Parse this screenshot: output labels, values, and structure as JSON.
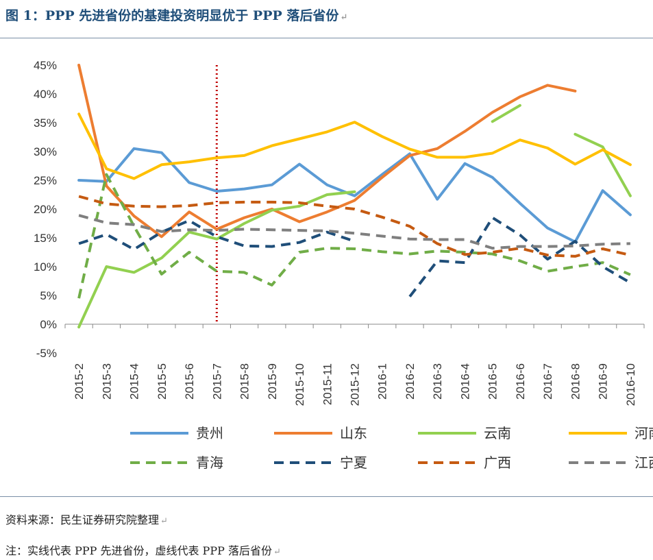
{
  "title": "图 1：PPP 先进省份的基建投资明显优于 PPP 落后省份",
  "return_mark": "↵",
  "source": "资料来源：民生证券研究院整理",
  "note": "注：实线代表 PPP 先进省份，虚线代表 PPP 落后省份",
  "colors": {
    "title": "#1f4e79",
    "guizhou": "#5b9bd5",
    "shandong": "#ed7d31",
    "yunnan": "#92d050",
    "henan": "#ffc000",
    "qinghai": "#70ad47",
    "ningxia": "#1f4e79",
    "guangxi": "#c55a11",
    "jiangxi": "#7f7f7f",
    "marker_line": "#c00000"
  },
  "chart_data": {
    "type": "line",
    "categories": [
      "2015-2",
      "2015-3",
      "2015-4",
      "2015-5",
      "2015-6",
      "2015-7",
      "2015-8",
      "2015-9",
      "2015-10",
      "2015-11",
      "2015-12",
      "2016-1",
      "2016-2",
      "2016-3",
      "2016-4",
      "2016-5",
      "2016-6",
      "2016-7",
      "2016-8",
      "2016-9",
      "2016-10"
    ],
    "ylim": [
      -5,
      45
    ],
    "yticks": [
      "-5%",
      "0%",
      "5%",
      "10%",
      "15%",
      "20%",
      "25%",
      "30%",
      "35%",
      "40%",
      "45%"
    ],
    "vertical_marker_category": "2015-7",
    "legend_position": "bottom",
    "series": [
      {
        "name": "贵州",
        "style": "solid",
        "color": "#5b9bd5",
        "values": [
          25,
          24.8,
          30.5,
          29.8,
          24.6,
          23.1,
          23.5,
          24.2,
          27.8,
          24.2,
          22.3,
          26,
          29.6,
          21.7,
          27.9,
          25.5,
          21,
          16.7,
          14.3,
          23.2,
          19
        ]
      },
      {
        "name": "山东",
        "style": "solid",
        "color": "#ed7d31",
        "values": [
          45,
          24,
          18.8,
          15.2,
          19.5,
          16.5,
          18.5,
          20,
          17.8,
          19.5,
          21.5,
          25.5,
          29.3,
          30.5,
          33.5,
          36.8,
          39.5,
          41.5,
          40.5,
          null,
          null
        ]
      },
      {
        "name": "云南",
        "style": "solid",
        "color": "#92d050",
        "values": [
          -0.5,
          10,
          9,
          11.5,
          16,
          14.8,
          17.5,
          19.8,
          20.5,
          22.5,
          23,
          null,
          null,
          null,
          null,
          35.2,
          38,
          null,
          33,
          30.8,
          22.3
        ]
      },
      {
        "name": "河南",
        "style": "solid",
        "color": "#ffc000",
        "values": [
          36.5,
          27,
          25.3,
          27.7,
          28.2,
          28.9,
          29.3,
          31,
          32.2,
          33.4,
          35.1,
          32.6,
          30.4,
          29,
          29,
          29.7,
          32,
          30.6,
          27.8,
          30.3,
          27.7
        ]
      },
      {
        "name": "青海",
        "style": "dashed",
        "color": "#70ad47",
        "values": [
          4.5,
          26,
          17,
          8.7,
          12.5,
          9.2,
          9,
          6.8,
          12.5,
          13.2,
          13.1,
          12.6,
          12.2,
          12.7,
          12.5,
          12.2,
          11,
          9.2,
          10,
          10.7,
          8.6
        ]
      },
      {
        "name": "宁夏",
        "style": "dashed",
        "color": "#1f4e79",
        "values": [
          14,
          15.6,
          13,
          16,
          18,
          15.2,
          13.6,
          13.5,
          14.2,
          16,
          14.4,
          null,
          4.8,
          11,
          10.7,
          18.5,
          15.5,
          11.3,
          14.4,
          10,
          7.2
        ]
      },
      {
        "name": "广西",
        "style": "dashed",
        "color": "#c55a11",
        "values": [
          22.2,
          20.9,
          20.5,
          20.4,
          20.6,
          21.1,
          21.2,
          21.2,
          21.1,
          20.5,
          20,
          18.6,
          17,
          14,
          12.1,
          12.5,
          13.2,
          12,
          11.8,
          13.1,
          12
        ]
      },
      {
        "name": "江西",
        "style": "dashed",
        "color": "#7f7f7f",
        "values": [
          18.9,
          17.6,
          17.3,
          16.1,
          16.4,
          16.3,
          16.5,
          16.4,
          16.3,
          16.2,
          15.8,
          15.3,
          14.8,
          14.7,
          14.7,
          13.2,
          13.5,
          13.5,
          13.6,
          13.9,
          14
        ]
      }
    ]
  }
}
